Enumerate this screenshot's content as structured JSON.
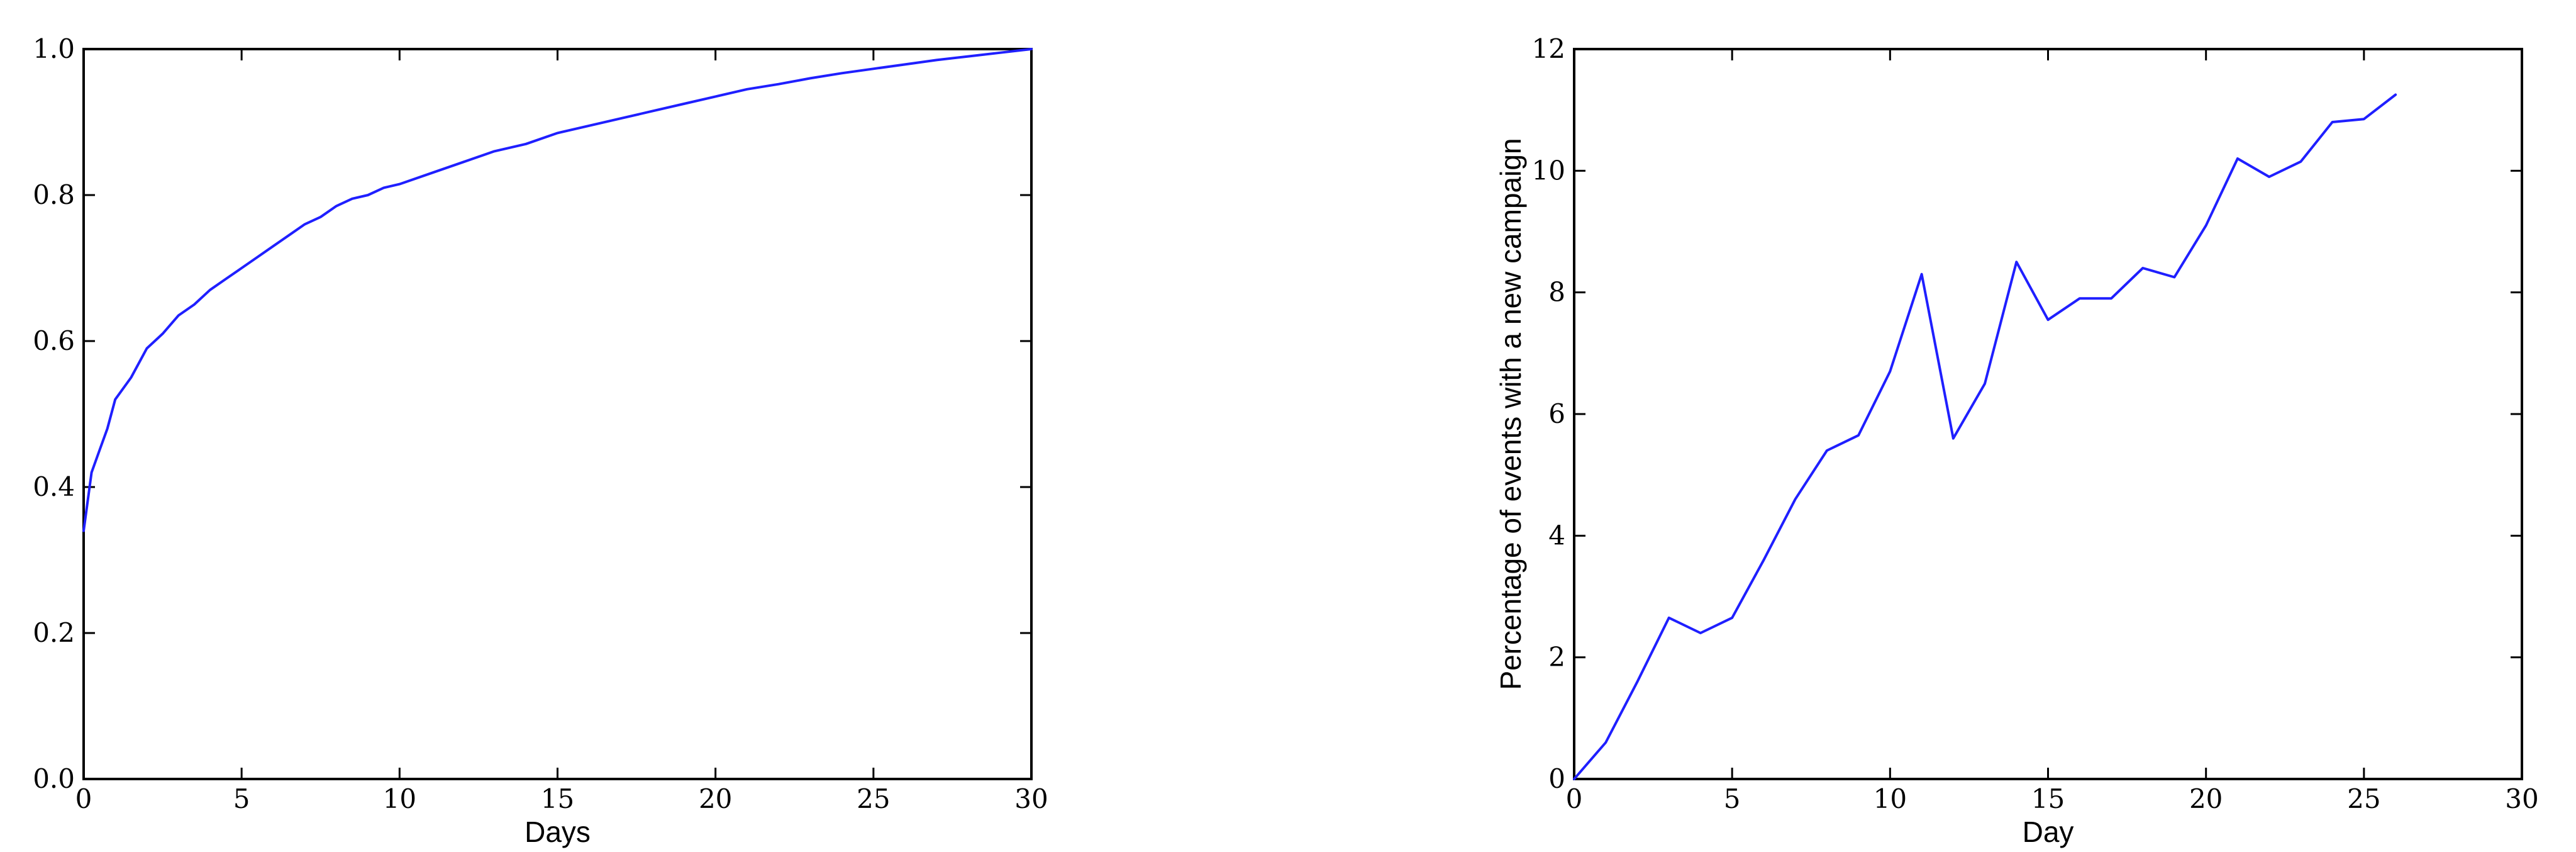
{
  "colors": {
    "series": "#1f1fff",
    "axis": "#000000",
    "background": "#ffffff"
  },
  "chart_data": [
    {
      "type": "line",
      "title": "",
      "xlabel": "Days",
      "ylabel": "",
      "xlim": [
        0,
        30
      ],
      "ylim": [
        0,
        1.0
      ],
      "xticks": [
        0,
        5,
        10,
        15,
        20,
        25,
        30
      ],
      "yticks": [
        0.0,
        0.2,
        0.4,
        0.6,
        0.8,
        1.0
      ],
      "xtick_labels": [
        "0",
        "5",
        "10",
        "15",
        "20",
        "25",
        "30"
      ],
      "ytick_labels": [
        "0.0",
        "0.2",
        "0.4",
        "0.6",
        "0.8",
        "1.0"
      ],
      "grid": false,
      "series": [
        {
          "x": [
            0,
            0.25,
            0.5,
            0.75,
            1.0,
            1.5,
            2.0,
            2.5,
            3.0,
            3.5,
            4.0,
            4.5,
            5.0,
            5.5,
            6.0,
            6.5,
            7.0,
            7.5,
            8.0,
            8.5,
            9.0,
            9.5,
            10,
            11,
            12,
            13,
            14,
            15,
            16,
            17,
            18,
            19,
            20,
            21,
            22,
            23,
            24,
            25,
            26,
            27,
            28,
            29,
            30
          ],
          "y": [
            0.34,
            0.42,
            0.45,
            0.48,
            0.52,
            0.55,
            0.59,
            0.61,
            0.635,
            0.65,
            0.67,
            0.685,
            0.7,
            0.715,
            0.73,
            0.745,
            0.76,
            0.77,
            0.785,
            0.795,
            0.8,
            0.81,
            0.815,
            0.83,
            0.845,
            0.86,
            0.87,
            0.885,
            0.895,
            0.905,
            0.915,
            0.925,
            0.935,
            0.945,
            0.952,
            0.96,
            0.967,
            0.973,
            0.979,
            0.985,
            0.99,
            0.995,
            1.0
          ]
        }
      ]
    },
    {
      "type": "line",
      "title": "",
      "xlabel": "Day",
      "ylabel": "Percentage of events with a new campaign",
      "xlim": [
        0,
        30
      ],
      "ylim": [
        0,
        12
      ],
      "xticks": [
        0,
        5,
        10,
        15,
        20,
        25,
        30
      ],
      "yticks": [
        0,
        2,
        4,
        6,
        8,
        10,
        12
      ],
      "xtick_labels": [
        "0",
        "5",
        "10",
        "15",
        "20",
        "25",
        "30"
      ],
      "ytick_labels": [
        "0",
        "2",
        "4",
        "6",
        "8",
        "10",
        "12"
      ],
      "grid": false,
      "series": [
        {
          "x": [
            0,
            1,
            2,
            3,
            4,
            5,
            6,
            7,
            8,
            9,
            10,
            11,
            12,
            13,
            14,
            15,
            16,
            17,
            18,
            19,
            20,
            21,
            22,
            23,
            24,
            25,
            26
          ],
          "y": [
            0,
            0.6,
            1.6,
            2.65,
            2.4,
            2.65,
            3.6,
            4.6,
            5.4,
            5.65,
            6.7,
            8.3,
            5.6,
            6.5,
            8.5,
            7.55,
            7.9,
            7.9,
            8.4,
            8.25,
            9.1,
            10.2,
            9.9,
            10.15,
            10.8,
            10.85,
            11.25
          ]
        }
      ]
    }
  ]
}
